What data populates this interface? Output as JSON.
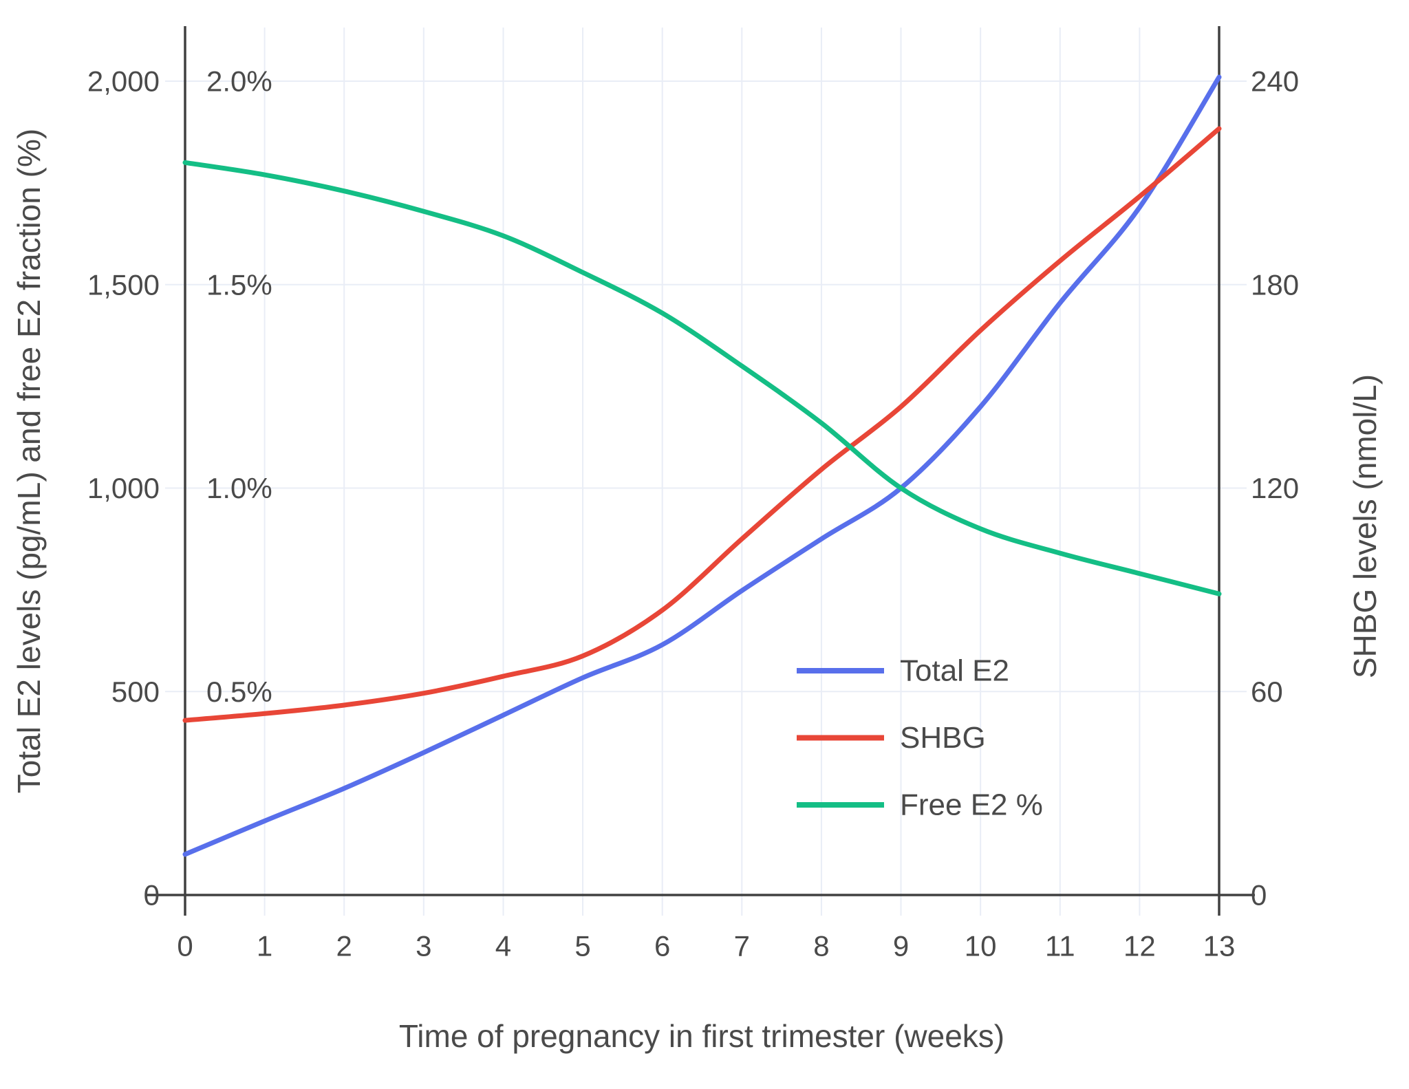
{
  "chart_data": {
    "type": "line",
    "title": "",
    "x_axis": {
      "label": "Time of pregnancy in first trimester (weeks)",
      "ticks": [
        0,
        1,
        2,
        3,
        4,
        5,
        6,
        7,
        8,
        9,
        10,
        11,
        12,
        13
      ],
      "range": [
        0,
        13
      ],
      "grid": true
    },
    "left_axis": {
      "label": "Total E2 levels (pg/mL) and free E2 fraction (%)",
      "ticks": [
        0,
        500,
        1000,
        1500,
        2000
      ],
      "tick_labels": [
        "0",
        "500",
        "1,000",
        "1,500",
        "2,000"
      ],
      "percent_tick_labels": [
        "",
        "0.5%",
        "1.0%",
        "1.5%",
        "2.0%"
      ],
      "percent_max": 2.0,
      "grid": true
    },
    "right_axis": {
      "label": "SHBG levels (nmol/L)",
      "ticks": [
        0,
        60,
        120,
        180,
        240
      ],
      "tick_labels": [
        "0",
        "60",
        "120",
        "180",
        "240"
      ]
    },
    "weeks": [
      0,
      1,
      2,
      3,
      4,
      5,
      6,
      7,
      8,
      9,
      10,
      11,
      12,
      13
    ],
    "series": [
      {
        "name": "Total E2",
        "axis": "left",
        "unit": "pg/mL",
        "color": "#586feb",
        "values": [
          100,
          182,
          262,
          350,
          442,
          534,
          615,
          748,
          875,
          1000,
          1200,
          1455,
          1690,
          2010
        ]
      },
      {
        "name": "SHBG",
        "axis": "right",
        "unit": "nmol/L",
        "color": "#e84637",
        "values": [
          51.5,
          53.5,
          56,
          59.5,
          64.5,
          70.5,
          84,
          105,
          125.5,
          144,
          166.5,
          187,
          206,
          226
        ]
      },
      {
        "name": "Free E2 %",
        "axis": "percent",
        "unit": "%",
        "color": "#14be85",
        "values": [
          1.8,
          1.77,
          1.73,
          1.68,
          1.62,
          1.53,
          1.43,
          1.3,
          1.16,
          1.0,
          0.9,
          0.84,
          0.79,
          0.74
        ]
      }
    ],
    "legend": {
      "position": "inside-bottom-right",
      "items": [
        "Total E2",
        "SHBG",
        "Free E2 %"
      ]
    },
    "colors": {
      "grid": "#e9edf6",
      "axis": "#404040",
      "text": "#4a4a4a",
      "background": "#ffffff"
    }
  }
}
